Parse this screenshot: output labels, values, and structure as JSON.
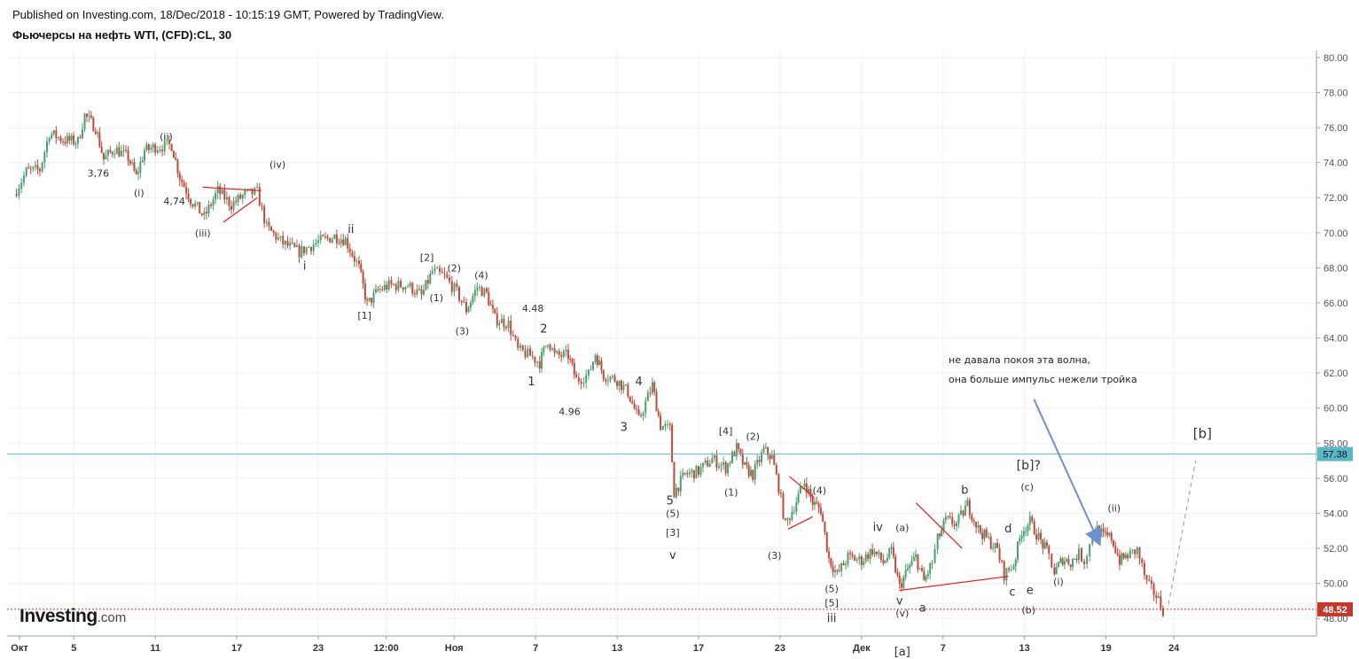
{
  "header": {
    "published": "Published on Investing.com, 18/Dec/2018 - 10:15:19 GMT, Powered by TradingView.",
    "symbol": "Фьючерсы на нефть WTI, (CFD):CL, 30"
  },
  "logo": {
    "main": "Investing",
    "domain": ".com"
  },
  "colors": {
    "up": "#4a9f6e",
    "down": "#c0493a",
    "trendline": "#e02020",
    "hline": "#5ab7c8",
    "price_line": "#c0392b",
    "arrow": "#6f8fcf",
    "projection": "#999999"
  },
  "chart_data": {
    "type": "candlestick",
    "title": "Фьючерсы на нефть WTI, (CFD):CL, 30",
    "y_ticks": [
      "80.00",
      "78.00",
      "76.00",
      "74.00",
      "72.00",
      "70.00",
      "68.00",
      "66.00",
      "64.00",
      "62.00",
      "60.00",
      "58.00",
      "56.00",
      "54.00",
      "52.00",
      "50.00",
      "48.00"
    ],
    "ylim": [
      47.0,
      80.4
    ],
    "x_ticks": [
      {
        "label": "Окт",
        "day": 1
      },
      {
        "label": "5",
        "day": 5
      },
      {
        "label": "11",
        "day": 11
      },
      {
        "label": "17",
        "day": 17
      },
      {
        "label": "23",
        "day": 23
      },
      {
        "label": "12:00",
        "day": 28
      },
      {
        "label": "Ноя",
        "day": 33
      },
      {
        "label": "7",
        "day": 39
      },
      {
        "label": "13",
        "day": 45
      },
      {
        "label": "17",
        "day": 51
      },
      {
        "label": "23",
        "day": 57
      },
      {
        "label": "Дек",
        "day": 63
      },
      {
        "label": "7",
        "day": 69
      },
      {
        "label": "13",
        "day": 75
      },
      {
        "label": "19",
        "day": 81
      },
      {
        "label": "24",
        "day": 86
      }
    ],
    "price_path": [
      [
        0.6,
        72.2
      ],
      [
        1.5,
        73.5
      ],
      [
        2.5,
        73.6
      ],
      [
        3.2,
        75.7
      ],
      [
        4.2,
        75.3
      ],
      [
        5.3,
        75.2
      ],
      [
        5.8,
        76.7
      ],
      [
        6.6,
        76.0
      ],
      [
        7.2,
        74.2
      ],
      [
        8.0,
        74.8
      ],
      [
        9.0,
        74.3
      ],
      [
        9.6,
        73.2
      ],
      [
        10.2,
        74.7
      ],
      [
        11.0,
        74.9
      ],
      [
        12.2,
        75.0
      ],
      [
        12.8,
        73.2
      ],
      [
        13.6,
        71.9
      ],
      [
        14.6,
        70.9
      ],
      [
        15.6,
        72.4
      ],
      [
        16.6,
        71.6
      ],
      [
        17.6,
        72.2
      ],
      [
        18.5,
        72.3
      ],
      [
        19.2,
        70.3
      ],
      [
        20.4,
        69.4
      ],
      [
        21.6,
        68.9
      ],
      [
        23.0,
        69.5
      ],
      [
        24.2,
        69.8
      ],
      [
        25.0,
        69.6
      ],
      [
        26.0,
        68.0
      ],
      [
        26.6,
        65.9
      ],
      [
        27.4,
        66.7
      ],
      [
        28.2,
        67.0
      ],
      [
        29.6,
        67.0
      ],
      [
        30.6,
        66.4
      ],
      [
        31.4,
        67.8
      ],
      [
        32.3,
        67.5
      ],
      [
        33.2,
        66.6
      ],
      [
        33.9,
        65.6
      ],
      [
        34.7,
        66.9
      ],
      [
        35.4,
        66.5
      ],
      [
        36.0,
        65.1
      ],
      [
        37.0,
        64.8
      ],
      [
        37.7,
        63.3
      ],
      [
        38.6,
        63.0
      ],
      [
        39.3,
        62.6
      ],
      [
        39.9,
        63.9
      ],
      [
        40.4,
        63.0
      ],
      [
        41.4,
        63.0
      ],
      [
        42.0,
        61.6
      ],
      [
        42.9,
        61.9
      ],
      [
        43.4,
        63.1
      ],
      [
        44.0,
        61.9
      ],
      [
        45.0,
        61.6
      ],
      [
        45.8,
        60.9
      ],
      [
        46.6,
        59.3
      ],
      [
        47.6,
        61.3
      ],
      [
        48.2,
        59.0
      ],
      [
        48.9,
        58.8
      ],
      [
        49.2,
        55.2
      ],
      [
        50.0,
        56.2
      ],
      [
        51.0,
        56.4
      ],
      [
        52.0,
        57.1
      ],
      [
        53.0,
        56.6
      ],
      [
        53.8,
        57.7
      ],
      [
        54.4,
        56.6
      ],
      [
        55.0,
        56.2
      ],
      [
        55.8,
        57.6
      ],
      [
        56.4,
        57.2
      ],
      [
        56.9,
        55.5
      ],
      [
        57.4,
        53.3
      ],
      [
        58.2,
        54.7
      ],
      [
        58.8,
        55.8
      ],
      [
        59.4,
        54.6
      ],
      [
        60.0,
        54.2
      ],
      [
        60.6,
        51.4
      ],
      [
        61.2,
        50.5
      ],
      [
        62.0,
        51.5
      ],
      [
        63.0,
        51.3
      ],
      [
        63.8,
        51.9
      ],
      [
        64.6,
        51.2
      ],
      [
        65.2,
        51.8
      ],
      [
        65.8,
        49.8
      ],
      [
        66.4,
        50.8
      ],
      [
        67.0,
        51.5
      ],
      [
        67.6,
        50.1
      ],
      [
        68.2,
        51.2
      ],
      [
        68.6,
        52.5
      ],
      [
        69.2,
        53.6
      ],
      [
        70.0,
        53.4
      ],
      [
        70.8,
        54.5
      ],
      [
        71.6,
        53.1
      ],
      [
        72.2,
        52.6
      ],
      [
        73.0,
        51.9
      ],
      [
        73.5,
        50.5
      ],
      [
        74.2,
        51.1
      ],
      [
        74.8,
        53.0
      ],
      [
        75.4,
        53.5
      ],
      [
        76.2,
        52.4
      ],
      [
        76.8,
        51.6
      ],
      [
        77.2,
        50.6
      ],
      [
        77.8,
        51.4
      ],
      [
        78.4,
        51.2
      ],
      [
        79.0,
        51.7
      ],
      [
        79.4,
        51.3
      ],
      [
        79.8,
        52.2
      ],
      [
        80.2,
        53.2
      ],
      [
        80.8,
        52.7
      ],
      [
        81.4,
        52.6
      ],
      [
        82.0,
        51.3
      ],
      [
        82.6,
        51.6
      ],
      [
        83.3,
        51.9
      ],
      [
        84.0,
        50.0
      ],
      [
        84.7,
        49.3
      ],
      [
        85.2,
        48.5
      ]
    ],
    "horizontal_line": {
      "price": 57.38,
      "label": "57.38"
    },
    "last_price": {
      "price": 48.52,
      "label": "48.52"
    },
    "trendlines": [
      [
        [
          14.5,
          72.6
        ],
        [
          18.8,
          72.4
        ]
      ],
      [
        [
          16.0,
          70.6
        ],
        [
          18.5,
          72.0
        ]
      ],
      [
        [
          57.7,
          56.1
        ],
        [
          59.5,
          54.9
        ]
      ],
      [
        [
          57.6,
          53.1
        ],
        [
          59.4,
          53.8
        ]
      ],
      [
        [
          67.0,
          54.6
        ],
        [
          70.4,
          52.0
        ]
      ],
      [
        [
          65.8,
          49.6
        ],
        [
          73.8,
          50.4
        ]
      ]
    ],
    "projection": [
      [
        85.6,
        48.8
      ],
      [
        87.6,
        57.0
      ]
    ],
    "arrow": {
      "from": [
        75.7,
        60.5
      ],
      "to": [
        80.5,
        52.3
      ]
    },
    "annotations": [
      {
        "text": "(ii)",
        "day": 11.8,
        "price": 75.3,
        "size": 11
      },
      {
        "text": "3,76",
        "day": 6.8,
        "price": 73.2,
        "size": 11
      },
      {
        "text": "(i)",
        "day": 9.8,
        "price": 72.1,
        "size": 11
      },
      {
        "text": "4,74",
        "day": 12.4,
        "price": 71.6,
        "size": 11
      },
      {
        "text": "(iii)",
        "day": 14.5,
        "price": 69.8,
        "size": 11
      },
      {
        "text": "(iv)",
        "day": 20.0,
        "price": 73.7,
        "size": 11
      },
      {
        "text": "ii",
        "day": 25.4,
        "price": 70.0,
        "size": 13
      },
      {
        "text": "i",
        "day": 22.0,
        "price": 67.9,
        "size": 13
      },
      {
        "text": "[1]",
        "day": 26.4,
        "price": 65.1,
        "size": 11
      },
      {
        "text": "[2]",
        "day": 31.0,
        "price": 68.4,
        "size": 11
      },
      {
        "text": "(2)",
        "day": 33.0,
        "price": 67.8,
        "size": 11
      },
      {
        "text": "(4)",
        "day": 35.0,
        "price": 67.4,
        "size": 11
      },
      {
        "text": "(1)",
        "day": 31.7,
        "price": 66.1,
        "size": 11
      },
      {
        "text": "(3)",
        "day": 33.6,
        "price": 64.2,
        "size": 11
      },
      {
        "text": "4.48",
        "day": 38.8,
        "price": 65.5,
        "size": 11
      },
      {
        "text": "2",
        "day": 39.6,
        "price": 64.3,
        "size": 13
      },
      {
        "text": "1",
        "day": 38.7,
        "price": 61.3,
        "size": 13
      },
      {
        "text": "4.96",
        "day": 41.5,
        "price": 59.6,
        "size": 11
      },
      {
        "text": "4",
        "day": 46.6,
        "price": 61.3,
        "size": 13
      },
      {
        "text": "3",
        "day": 45.5,
        "price": 58.7,
        "size": 13
      },
      {
        "text": "[4]",
        "day": 53.0,
        "price": 58.5,
        "size": 11
      },
      {
        "text": "(2)",
        "day": 55.0,
        "price": 58.2,
        "size": 11
      },
      {
        "text": "(4)",
        "day": 59.9,
        "price": 55.1,
        "size": 11
      },
      {
        "text": "(1)",
        "day": 53.4,
        "price": 55.0,
        "size": 11
      },
      {
        "text": "5",
        "day": 48.9,
        "price": 54.5,
        "size": 13
      },
      {
        "text": "(5)",
        "day": 49.1,
        "price": 53.8,
        "size": 11
      },
      {
        "text": "[3]",
        "day": 49.1,
        "price": 52.7,
        "size": 11
      },
      {
        "text": "v",
        "day": 49.1,
        "price": 51.4,
        "size": 13
      },
      {
        "text": "(3)",
        "day": 56.6,
        "price": 51.4,
        "size": 11
      },
      {
        "text": "(5)",
        "day": 60.8,
        "price": 49.5,
        "size": 11
      },
      {
        "text": "[5]",
        "day": 60.8,
        "price": 48.7,
        "size": 11
      },
      {
        "text": "iii",
        "day": 60.8,
        "price": 47.8,
        "size": 13
      },
      {
        "text": "iv",
        "day": 64.2,
        "price": 53.0,
        "size": 13
      },
      {
        "text": "(a)",
        "day": 66.0,
        "price": 53.0,
        "size": 11
      },
      {
        "text": "v",
        "day": 65.8,
        "price": 48.8,
        "size": 13
      },
      {
        "text": "(v)",
        "day": 66.0,
        "price": 48.1,
        "size": 11
      },
      {
        "text": "a",
        "day": 67.5,
        "price": 48.4,
        "size": 13
      },
      {
        "text": "[a]",
        "day": 66.0,
        "price": 45.9,
        "size": 13
      },
      {
        "text": "b",
        "day": 70.6,
        "price": 55.1,
        "size": 13
      },
      {
        "text": "[b]?",
        "day": 75.3,
        "price": 56.5,
        "size": 14
      },
      {
        "text": "(c)",
        "day": 75.2,
        "price": 55.3,
        "size": 11
      },
      {
        "text": "d",
        "day": 73.8,
        "price": 52.9,
        "size": 13
      },
      {
        "text": "c",
        "day": 74.1,
        "price": 49.3,
        "size": 13
      },
      {
        "text": "e",
        "day": 75.4,
        "price": 49.4,
        "size": 13
      },
      {
        "text": "(i)",
        "day": 77.5,
        "price": 49.9,
        "size": 11
      },
      {
        "text": "(b)",
        "day": 75.3,
        "price": 48.3,
        "size": 11
      },
      {
        "text": "(ii)",
        "day": 81.6,
        "price": 54.1,
        "size": 11
      },
      {
        "text": "[b]",
        "day": 88.1,
        "price": 58.3,
        "size": 15
      }
    ],
    "note": [
      "не давала покоя эта волна,",
      "она больше импульс нежели тройка"
    ]
  }
}
